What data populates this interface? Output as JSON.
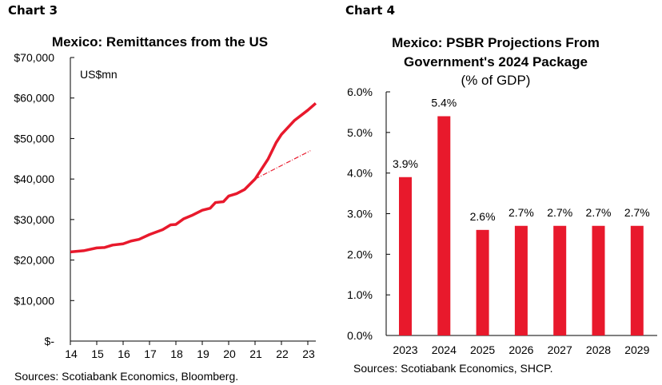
{
  "labels": {
    "left": "Chart 3",
    "right": "Chart 4"
  },
  "chart_data": [
    {
      "type": "line",
      "title": "Mexico: Remittances from the US",
      "annotation": "US$mn",
      "source": "Sources:  Scotiabank Economics, Bloomberg.",
      "xticks": [
        "14",
        "15",
        "16",
        "17",
        "18",
        "19",
        "20",
        "21",
        "22",
        "23"
      ],
      "xlim": [
        14,
        23.3
      ],
      "yticks": [
        "$-",
        "$10,000",
        "$20,000",
        "$30,000",
        "$40,000",
        "$50,000",
        "$60,000",
        "$70,000"
      ],
      "ylim": [
        0,
        70000
      ],
      "color": "#e8192c",
      "series": [
        {
          "style": "solid",
          "x": [
            14,
            14.5,
            15,
            15.3,
            15.6,
            16,
            16.3,
            16.6,
            17,
            17.5,
            17.8,
            18,
            18.3,
            18.6,
            19,
            19.3,
            19.5,
            19.8,
            20,
            20.3,
            20.6,
            21,
            21.5,
            21.8,
            22,
            22.5,
            23,
            23.3
          ],
          "y": [
            22000,
            22300,
            23000,
            23100,
            23700,
            24000,
            24700,
            25100,
            26300,
            27500,
            28700,
            28800,
            30200,
            31000,
            32300,
            32800,
            34200,
            34400,
            35800,
            36400,
            37400,
            40000,
            45000,
            49000,
            51000,
            54500,
            57000,
            58700
          ]
        },
        {
          "style": "dash-dot",
          "x": [
            21,
            23.1
          ],
          "y": [
            40000,
            47000
          ]
        }
      ]
    },
    {
      "type": "bar",
      "title": [
        "Mexico: PSBR Projections From",
        "Government's 2024 Package"
      ],
      "subtitle": "(% of GDP)",
      "source": "Sources: Scotiabank Economics, SHCP.",
      "categories": [
        "2023",
        "2024",
        "2025",
        "2026",
        "2027",
        "2028",
        "2029"
      ],
      "values": [
        3.9,
        5.4,
        2.6,
        2.7,
        2.7,
        2.7,
        2.7
      ],
      "data_labels": [
        "3.9%",
        "5.4%",
        "2.6%",
        "2.7%",
        "2.7%",
        "2.7%",
        "2.7%"
      ],
      "yticks": [
        "0.0%",
        "1.0%",
        "2.0%",
        "3.0%",
        "4.0%",
        "5.0%",
        "6.0%"
      ],
      "ylim": [
        0,
        6
      ],
      "color": "#e8192c"
    }
  ]
}
